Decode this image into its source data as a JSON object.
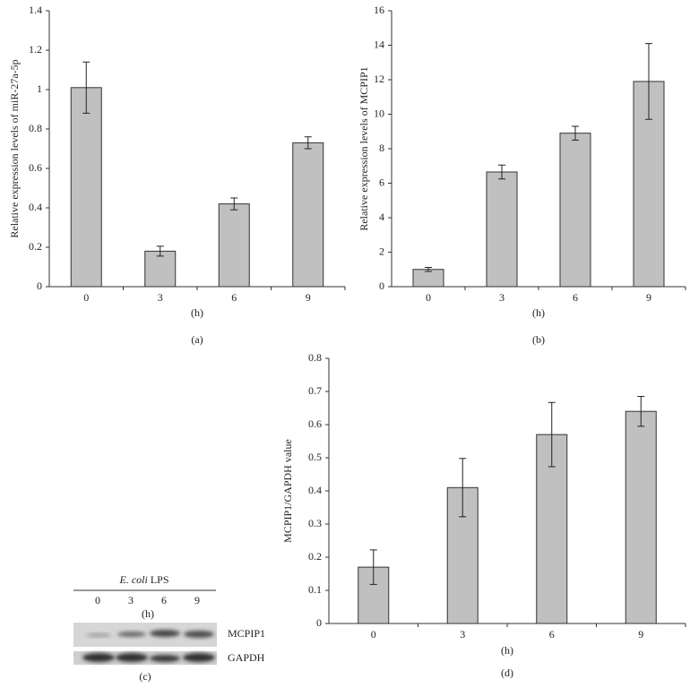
{
  "chart_data": [
    {
      "type": "bar",
      "panel": "(a)",
      "ylabel": "Relative expression levels of miR-27a-5p",
      "xlabel": "(h)",
      "categories": [
        "0",
        "3",
        "6",
        "9"
      ],
      "values": [
        1.01,
        0.18,
        0.42,
        0.73
      ],
      "errors": [
        0.13,
        0.025,
        0.03,
        0.03
      ],
      "color": "#c0c0c0",
      "ylim": [
        0,
        1.4
      ],
      "yticks": [
        0,
        0.2,
        0.4,
        0.6,
        0.8,
        1,
        1.2,
        1.4
      ]
    },
    {
      "type": "bar",
      "panel": "(b)",
      "ylabel": "Relative expression levels of MCPIP1",
      "xlabel": "(h)",
      "categories": [
        "0",
        "3",
        "6",
        "9"
      ],
      "values": [
        1.0,
        6.65,
        8.9,
        11.9
      ],
      "errors": [
        0.12,
        0.4,
        0.4,
        2.2
      ],
      "color": "#c0c0c0",
      "ylim": [
        0,
        16
      ],
      "yticks": [
        0,
        2,
        4,
        6,
        8,
        10,
        12,
        14,
        16
      ]
    },
    {
      "type": "bar",
      "panel": "(d)",
      "ylabel": "MCPIP1/GAPDH value",
      "xlabel": "(h)",
      "categories": [
        "0",
        "3",
        "6",
        "9"
      ],
      "values": [
        0.17,
        0.41,
        0.57,
        0.64
      ],
      "errors": [
        0.052,
        0.088,
        0.097,
        0.045
      ],
      "color": "#c0c0c0",
      "ylim": [
        0,
        0.8
      ],
      "yticks": [
        0,
        0.1,
        0.2,
        0.3,
        0.4,
        0.5,
        0.6,
        0.7,
        0.8
      ]
    }
  ],
  "blot": {
    "panel": "(c)",
    "agent": "E. coli",
    "treatment": "LPS",
    "lanes": [
      "0",
      "3",
      "6",
      "9"
    ],
    "unit": "(h)",
    "rows": [
      "MCPIP1",
      "GAPDH"
    ]
  }
}
